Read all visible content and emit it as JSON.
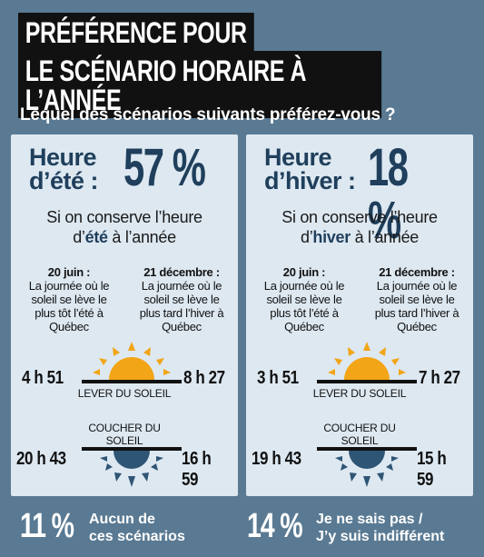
{
  "title": {
    "line1": "PRÉFÉRENCE POUR",
    "line2": "LE SCÉNARIO HORAIRE À L’ANNÉE"
  },
  "question": "Lequel des scénarios suivants préférez-vous ?",
  "colors": {
    "background": "#5a7a93",
    "panel": "#dde8f1",
    "accent_text": "#1f3f5c",
    "sun": "#f2a516",
    "sun_set": "#2f5575"
  },
  "chart_data": {
    "type": "table",
    "title": "PRÉFÉRENCE POUR LE SCÉNARIO HORAIRE À L’ANNÉE",
    "question": "Lequel des scénarios suivants préférez-vous ?",
    "options": [
      {
        "label": "Heure d’été",
        "percent": 57
      },
      {
        "label": "Heure d’hiver",
        "percent": 18
      },
      {
        "label": "Aucun de ces scénarios",
        "percent": 11
      },
      {
        "label": "Je ne sais pas / J’y suis indifférent",
        "percent": 14
      }
    ],
    "scenarios": [
      {
        "name": "Heure d’été",
        "sunrise_june20": "4 h 51",
        "sunrise_dec21": "8 h 27",
        "sunset_june20": "20 h 43",
        "sunset_dec21": "16 h 59"
      },
      {
        "name": "Heure d’hiver",
        "sunrise_june20": "3 h 51",
        "sunrise_dec21": "7 h 27",
        "sunset_june20": "19 h 43",
        "sunset_dec21": "15 h 59"
      }
    ]
  },
  "panels": [
    {
      "heure_line1": "Heure",
      "heure_line2": "d’été :",
      "pct": "57 %",
      "scen_line1": "Si on conserve l’heure",
      "scen_pre": "d’",
      "scen_word": "été",
      "scen_post": " à l’année",
      "date_left_title": "20 juin :",
      "date_left_text": "La journée où le soleil se lève le plus tôt l’été à Québec",
      "date_right_title": "21 décembre :",
      "date_right_text": "La journée où le soleil se lève le plus tard l’hiver à Québec",
      "sunrise_left": "4 h 51",
      "sunrise_right": "8 h 27",
      "lever_label": "LEVER DU SOLEIL",
      "coucher_label": "COUCHER DU SOLEIL",
      "sunset_left": "20 h 43",
      "sunset_right": "16 h 59"
    },
    {
      "heure_line1": "Heure",
      "heure_line2": "d’hiver :",
      "pct": "18 %",
      "scen_line1": "Si on conserve l’heure",
      "scen_pre": "d’",
      "scen_word": "hiver",
      "scen_post": " à l’année",
      "date_left_title": "20 juin :",
      "date_left_text": "La journée où le soleil se lève le plus tôt l’été à Québec",
      "date_right_title": "21 décembre :",
      "date_right_text": "La journée où le soleil se lève le plus tard l’hiver à Québec",
      "sunrise_left": "3 h 51",
      "sunrise_right": "7 h 27",
      "lever_label": "LEVER DU SOLEIL",
      "coucher_label": "COUCHER DU SOLEIL",
      "sunset_left": "19 h 43",
      "sunset_right": "15 h 59"
    }
  ],
  "bottom": [
    {
      "pct": "11 %",
      "label1": "Aucun de",
      "label2": "ces scénarios"
    },
    {
      "pct": "14 %",
      "label1": "Je ne sais pas /",
      "label2": "J’y suis indifférent"
    }
  ]
}
